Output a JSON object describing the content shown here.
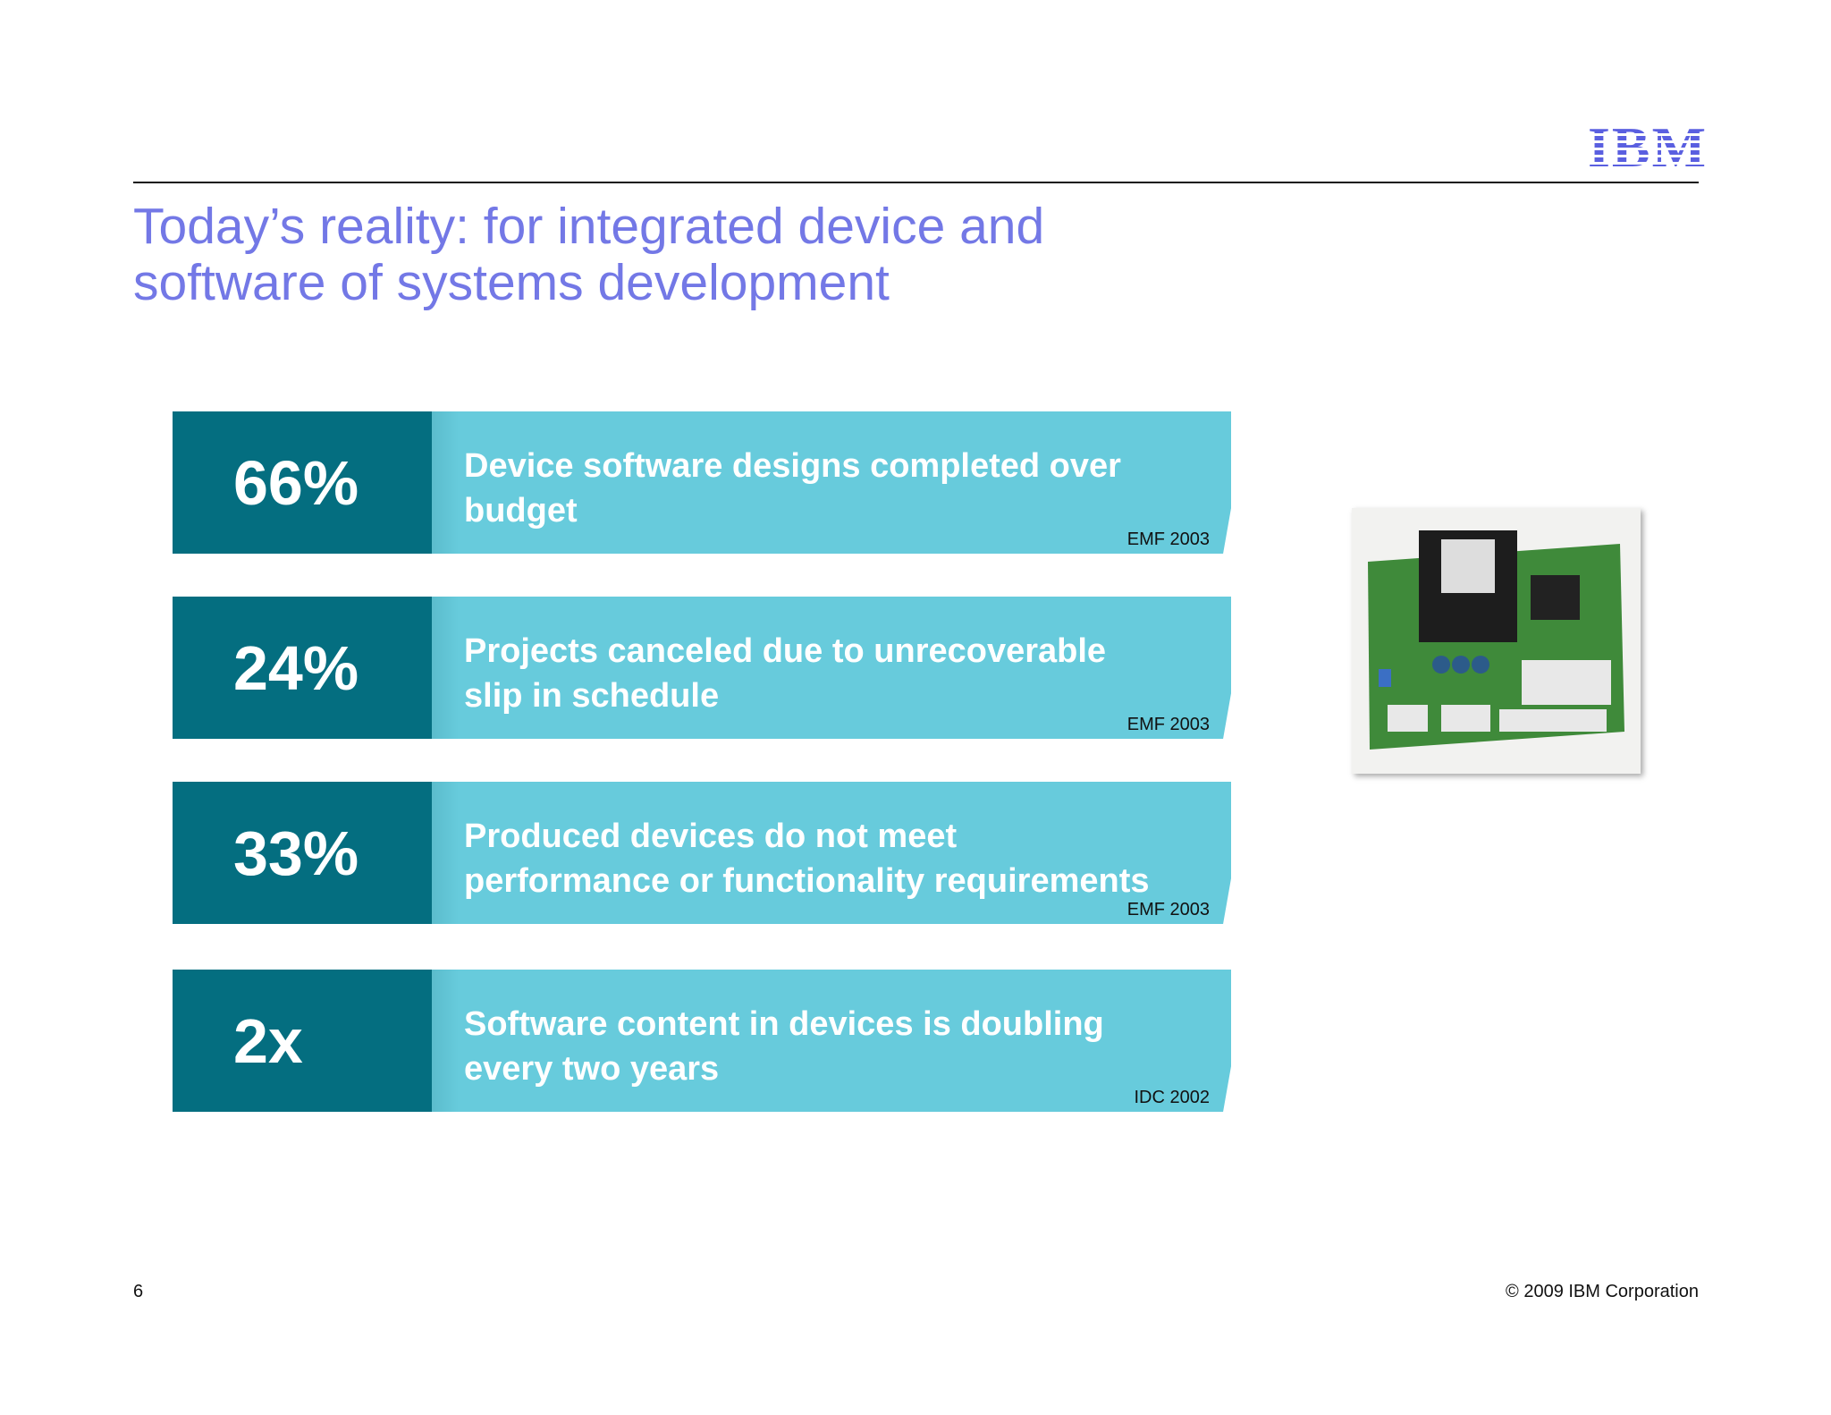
{
  "header": {
    "logo": "IBM",
    "title_lines": [
      "Today’s reality: for integrated device and",
      "software of systems development"
    ]
  },
  "stats": [
    {
      "value": "66%",
      "text_lines": [
        "Device software designs completed over",
        "budget"
      ],
      "source": "EMF 2003"
    },
    {
      "value": "24%",
      "text_lines": [
        "Projects canceled due to unrecoverable",
        "slip in schedule"
      ],
      "source": "EMF 2003"
    },
    {
      "value": "33%",
      "text_lines": [
        "Produced devices do not meet",
        "performance or functionality requirements"
      ],
      "source": "EMF 2003"
    },
    {
      "value": "2x",
      "text_lines": [
        "Software content in devices is doubling",
        "every two years"
      ],
      "source": "IDC 2002"
    }
  ],
  "footer": {
    "page": "6",
    "copyright": "© 2009 IBM Corporation"
  }
}
